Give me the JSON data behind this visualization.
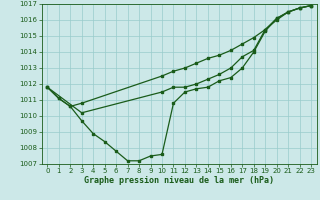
{
  "bg_color": "#cce8e8",
  "grid_color": "#99cccc",
  "line_color": "#1a5c1a",
  "title": "Graphe pression niveau de la mer (hPa)",
  "xlim": [
    -0.5,
    23.5
  ],
  "ylim": [
    1007,
    1017
  ],
  "yticks": [
    1007,
    1008,
    1009,
    1010,
    1011,
    1012,
    1013,
    1014,
    1015,
    1016,
    1017
  ],
  "xticks": [
    0,
    1,
    2,
    3,
    4,
    5,
    6,
    7,
    8,
    9,
    10,
    11,
    12,
    13,
    14,
    15,
    16,
    17,
    18,
    19,
    20,
    21,
    22,
    23
  ],
  "series1_x": [
    0,
    1,
    2,
    3,
    10,
    11,
    12,
    13,
    14,
    15,
    16,
    17,
    18,
    19,
    20,
    21,
    22,
    23
  ],
  "series1_y": [
    1011.8,
    1011.1,
    1010.6,
    1010.8,
    1012.5,
    1012.8,
    1013.0,
    1013.3,
    1013.6,
    1013.8,
    1014.1,
    1014.5,
    1014.9,
    1015.4,
    1016.0,
    1016.5,
    1016.75,
    1016.9
  ],
  "series2_x": [
    0,
    1,
    2,
    3,
    4,
    5,
    6,
    7,
    8,
    9,
    10,
    11,
    12,
    13,
    14,
    15,
    16,
    17,
    18,
    19,
    20,
    21,
    22,
    23
  ],
  "series2_y": [
    1011.8,
    1011.1,
    1010.6,
    1009.7,
    1008.9,
    1008.4,
    1007.8,
    1007.2,
    1007.2,
    1007.5,
    1007.6,
    1010.8,
    1011.5,
    1011.7,
    1011.8,
    1012.2,
    1012.4,
    1013.0,
    1014.0,
    1015.3,
    1016.1,
    1016.5,
    1016.75,
    1016.9
  ],
  "series3_x": [
    0,
    3,
    10,
    11,
    12,
    13,
    14,
    15,
    16,
    17,
    18,
    19,
    20,
    21,
    22,
    23
  ],
  "series3_y": [
    1011.8,
    1010.2,
    1011.5,
    1011.8,
    1011.8,
    1012.0,
    1012.3,
    1012.6,
    1013.0,
    1013.7,
    1014.1,
    1015.4,
    1016.1,
    1016.5,
    1016.75,
    1016.9
  ],
  "tick_fontsize": 5,
  "xlabel_fontsize": 6,
  "marker_size": 1.8,
  "line_width": 0.9
}
